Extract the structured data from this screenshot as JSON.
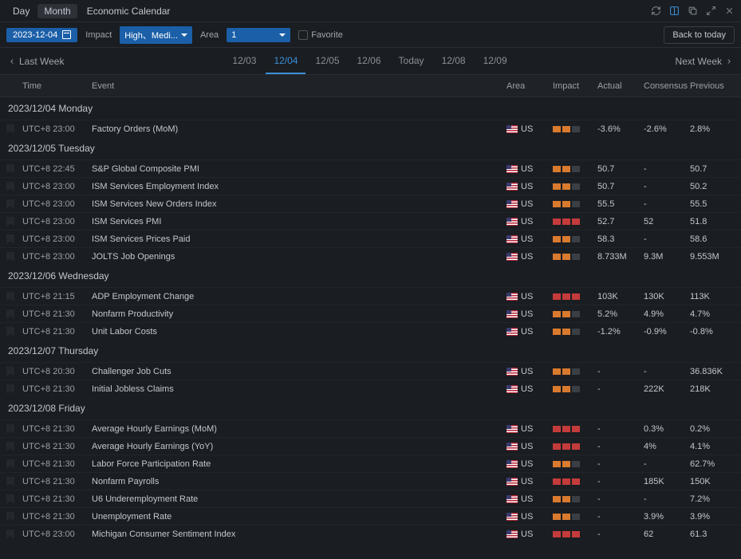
{
  "titlebar": {
    "view_day": "Day",
    "view_month": "Month",
    "title": "Economic Calendar"
  },
  "filter": {
    "date": "2023-12-04",
    "impact_label": "Impact",
    "impact_value": "High、Medi...",
    "area_label": "Area",
    "area_value": "1",
    "favorite_label": "Favorite",
    "back_today": "Back to today"
  },
  "nav": {
    "last_week": "Last Week",
    "next_week": "Next Week",
    "dates": [
      "12/03",
      "12/04",
      "12/05",
      "12/06",
      "Today",
      "12/08",
      "12/09"
    ],
    "active_index": 1
  },
  "columns": {
    "time": "Time",
    "event": "Event",
    "area": "Area",
    "impact": "Impact",
    "actual": "Actual",
    "consensus": "Consensus",
    "previous": "Previous"
  },
  "days": [
    {
      "label": "2023/12/04 Monday",
      "rows": [
        {
          "time": "UTC+8 23:00",
          "event": "Factory Orders (MoM)",
          "area": "US",
          "impact": 2,
          "actual": "-3.6%",
          "consensus": "-2.6%",
          "previous": "2.8%"
        }
      ]
    },
    {
      "label": "2023/12/05 Tuesday",
      "rows": [
        {
          "time": "UTC+8 22:45",
          "event": "S&P Global Composite PMI",
          "area": "US",
          "impact": 2,
          "actual": "50.7",
          "consensus": "-",
          "previous": "50.7"
        },
        {
          "time": "UTC+8 23:00",
          "event": "ISM Services Employment Index",
          "area": "US",
          "impact": 2,
          "actual": "50.7",
          "consensus": "-",
          "previous": "50.2"
        },
        {
          "time": "UTC+8 23:00",
          "event": "ISM Services New Orders Index",
          "area": "US",
          "impact": 2,
          "actual": "55.5",
          "consensus": "-",
          "previous": "55.5"
        },
        {
          "time": "UTC+8 23:00",
          "event": "ISM Services PMI",
          "area": "US",
          "impact": 3,
          "actual": "52.7",
          "consensus": "52",
          "previous": "51.8"
        },
        {
          "time": "UTC+8 23:00",
          "event": "ISM Services Prices Paid",
          "area": "US",
          "impact": 2,
          "actual": "58.3",
          "consensus": "-",
          "previous": "58.6"
        },
        {
          "time": "UTC+8 23:00",
          "event": "JOLTS Job Openings",
          "area": "US",
          "impact": 2,
          "actual": "8.733M",
          "consensus": "9.3M",
          "previous": "9.553M"
        }
      ]
    },
    {
      "label": "2023/12/06 Wednesday",
      "rows": [
        {
          "time": "UTC+8 21:15",
          "event": "ADP Employment Change",
          "area": "US",
          "impact": 3,
          "actual": "103K",
          "consensus": "130K",
          "previous": "113K"
        },
        {
          "time": "UTC+8 21:30",
          "event": "Nonfarm Productivity",
          "area": "US",
          "impact": 2,
          "actual": "5.2%",
          "consensus": "4.9%",
          "previous": "4.7%"
        },
        {
          "time": "UTC+8 21:30",
          "event": "Unit Labor Costs",
          "area": "US",
          "impact": 2,
          "actual": "-1.2%",
          "consensus": "-0.9%",
          "previous": "-0.8%"
        }
      ]
    },
    {
      "label": "2023/12/07 Thursday",
      "rows": [
        {
          "time": "UTC+8 20:30",
          "event": "Challenger Job Cuts",
          "area": "US",
          "impact": 2,
          "actual": "-",
          "consensus": "-",
          "previous": "36.836K"
        },
        {
          "time": "UTC+8 21:30",
          "event": "Initial Jobless Claims",
          "area": "US",
          "impact": 2,
          "actual": "-",
          "consensus": "222K",
          "previous": "218K"
        }
      ]
    },
    {
      "label": "2023/12/08 Friday",
      "rows": [
        {
          "time": "UTC+8 21:30",
          "event": "Average Hourly Earnings (MoM)",
          "area": "US",
          "impact": 3,
          "actual": "-",
          "consensus": "0.3%",
          "previous": "0.2%"
        },
        {
          "time": "UTC+8 21:30",
          "event": "Average Hourly Earnings (YoY)",
          "area": "US",
          "impact": 3,
          "actual": "-",
          "consensus": "4%",
          "previous": "4.1%"
        },
        {
          "time": "UTC+8 21:30",
          "event": "Labor Force Participation Rate",
          "area": "US",
          "impact": 2,
          "actual": "-",
          "consensus": "-",
          "previous": "62.7%"
        },
        {
          "time": "UTC+8 21:30",
          "event": "Nonfarm Payrolls",
          "area": "US",
          "impact": 3,
          "actual": "-",
          "consensus": "185K",
          "previous": "150K"
        },
        {
          "time": "UTC+8 21:30",
          "event": "U6 Underemployment Rate",
          "area": "US",
          "impact": 2,
          "actual": "-",
          "consensus": "-",
          "previous": "7.2%"
        },
        {
          "time": "UTC+8 21:30",
          "event": "Unemployment Rate",
          "area": "US",
          "impact": 2,
          "actual": "-",
          "consensus": "3.9%",
          "previous": "3.9%"
        },
        {
          "time": "UTC+8 23:00",
          "event": "Michigan Consumer Sentiment Index",
          "area": "US",
          "impact": 3,
          "actual": "-",
          "consensus": "62",
          "previous": "61.3"
        }
      ]
    }
  ]
}
